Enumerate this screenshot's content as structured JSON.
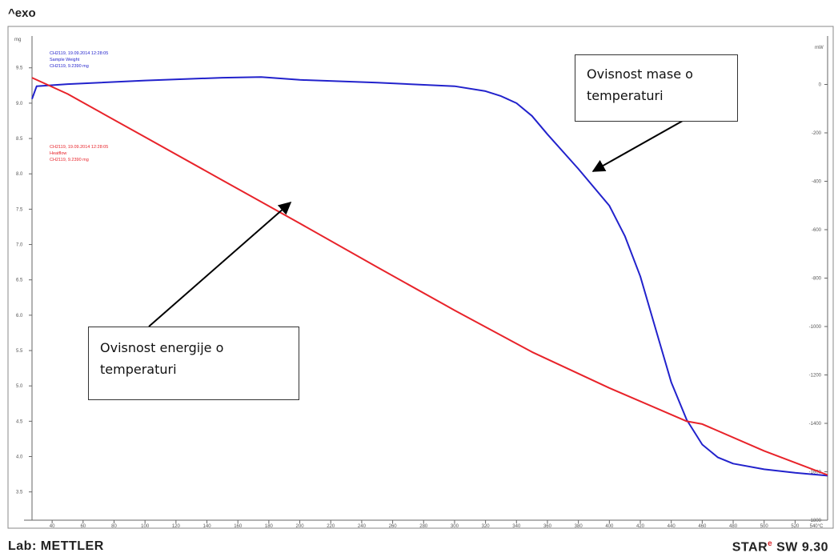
{
  "header": {
    "exo_label": "^exo"
  },
  "footer": {
    "lab_label": "Lab: METTLER",
    "star_prefix": "STAR",
    "star_mark": "e",
    "star_suffix": " SW 9.30"
  },
  "legend": {
    "blue": [
      "CH2119, 19.09.2014 12:28:05",
      "Sample Weight",
      "CH2119, 9.2390 mg"
    ],
    "red": [
      "CH2119, 19.09.2014 12:28:05",
      "Heatflow",
      "CH2119, 9.2390 mg"
    ]
  },
  "annotations": {
    "mass": [
      "Ovisnost mase o",
      "temperaturi"
    ],
    "energy": [
      "Ovisnost energije o",
      "temperaturi"
    ]
  },
  "colors": {
    "blue": "#2222cc",
    "red": "#e8232a",
    "axis": "#666666",
    "box": "#888888"
  },
  "chart_data": {
    "type": "line",
    "xlim": [
      27,
      541
    ],
    "x_ticks": [
      40,
      60,
      80,
      100,
      120,
      140,
      160,
      180,
      200,
      220,
      240,
      260,
      280,
      300,
      320,
      340,
      360,
      380,
      400,
      420,
      440,
      460,
      480,
      500,
      520
    ],
    "x_last_tick_label": "540°C",
    "left_axis": {
      "unit": "mg",
      "ylim": [
        3.1,
        9.95
      ],
      "ticks": [
        3.5,
        4.0,
        4.5,
        5.0,
        5.5,
        6.0,
        6.5,
        7.0,
        7.5,
        8.0,
        8.5,
        9.0,
        9.5
      ]
    },
    "right_axis": {
      "unit": "mW",
      "ylim": [
        -1800,
        200
      ],
      "ticks": [
        0,
        -200,
        -400,
        -600,
        -800,
        -1000,
        -1200,
        -1400,
        -1600,
        -1800
      ],
      "top_label": "mW"
    },
    "series": [
      {
        "name": "Sample Weight",
        "color": "#2222cc",
        "axis": "left",
        "x": [
          27,
          30,
          50,
          100,
          150,
          175,
          200,
          250,
          300,
          320,
          330,
          340,
          350,
          360,
          380,
          400,
          410,
          420,
          430,
          440,
          450,
          460,
          470,
          480,
          500,
          520,
          541
        ],
        "y": [
          9.06,
          9.24,
          9.27,
          9.32,
          9.36,
          9.37,
          9.33,
          9.29,
          9.24,
          9.17,
          9.1,
          9.0,
          8.82,
          8.56,
          8.07,
          7.55,
          7.12,
          6.55,
          5.8,
          5.05,
          4.52,
          4.17,
          3.99,
          3.9,
          3.82,
          3.77,
          3.73
        ]
      },
      {
        "name": "Heatflow",
        "color": "#e8232a",
        "axis": "left",
        "x": [
          27,
          50,
          100,
          150,
          200,
          250,
          300,
          350,
          400,
          450,
          460,
          500,
          541
        ],
        "y": [
          9.36,
          9.13,
          8.52,
          7.91,
          7.3,
          6.68,
          6.07,
          5.48,
          4.97,
          4.5,
          4.46,
          4.08,
          3.74
        ]
      }
    ]
  }
}
